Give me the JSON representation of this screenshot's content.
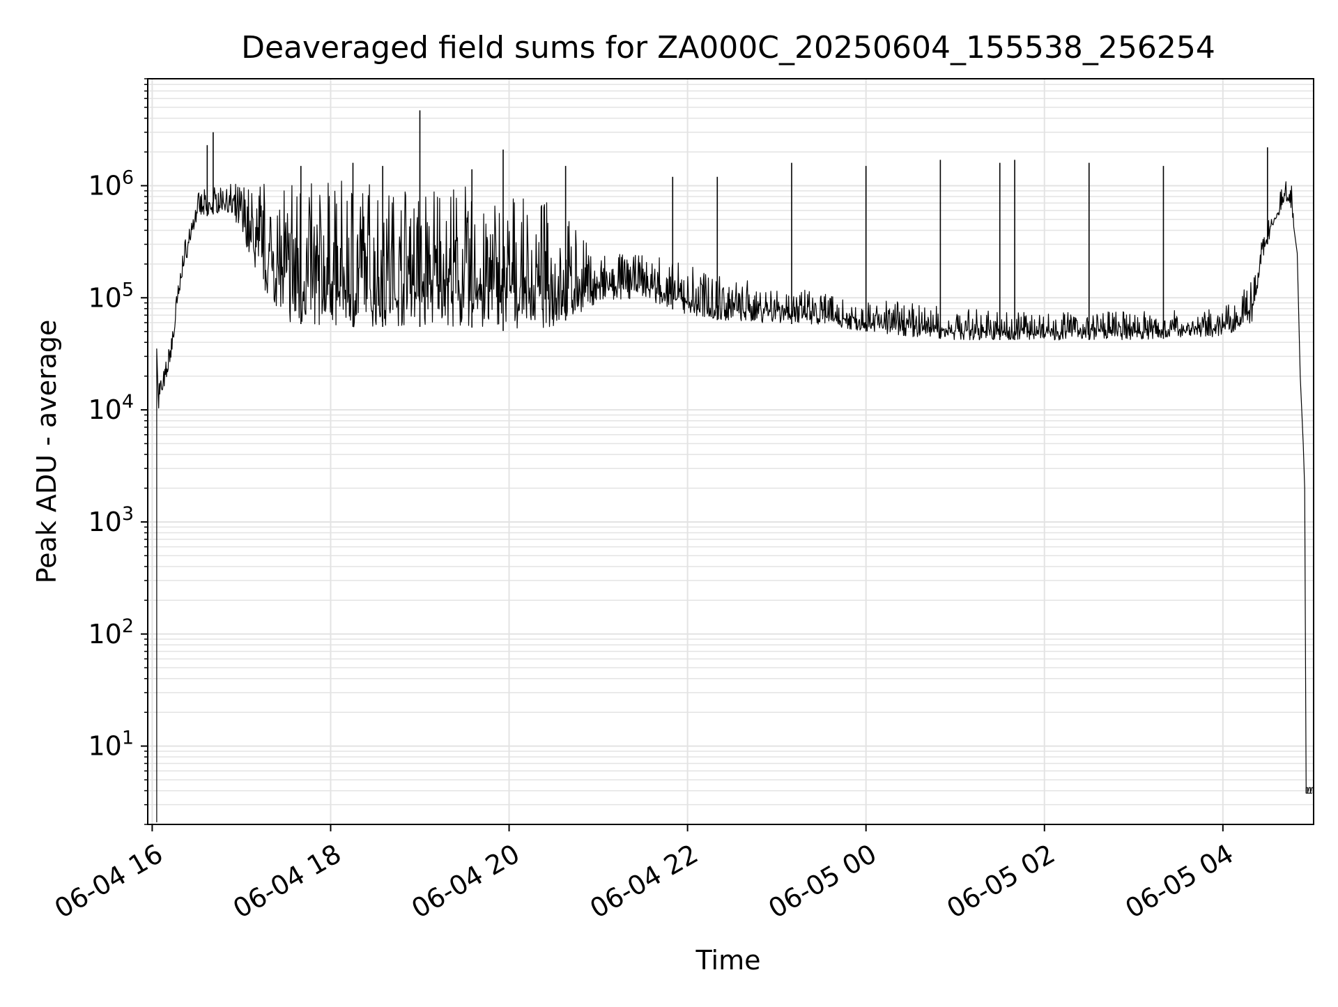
{
  "chart_data": {
    "type": "line",
    "title": "Deaveraged field sums for ZA000C_20250604_155538_256254",
    "xlabel": "Time",
    "ylabel": "Peak ADU - average",
    "yscale": "log",
    "ylim": [
      2,
      9000000
    ],
    "xlim": [
      "2025-06-04 15:57",
      "2025-06-05 05:01"
    ],
    "x_ticks": [
      {
        "value": "2025-06-04 16:00",
        "label": "06-04 16"
      },
      {
        "value": "2025-06-04 18:00",
        "label": "06-04 18"
      },
      {
        "value": "2025-06-04 20:00",
        "label": "06-04 20"
      },
      {
        "value": "2025-06-04 22:00",
        "label": "06-04 22"
      },
      {
        "value": "2025-06-05 00:00",
        "label": "06-05 00"
      },
      {
        "value": "2025-06-05 02:00",
        "label": "06-05 02"
      },
      {
        "value": "2025-06-05 04:00",
        "label": "06-05 04"
      }
    ],
    "y_ticks": [
      {
        "value": 10,
        "base": "10",
        "exp": "1"
      },
      {
        "value": 100,
        "base": "10",
        "exp": "2"
      },
      {
        "value": 1000,
        "base": "10",
        "exp": "3"
      },
      {
        "value": 10000,
        "base": "10",
        "exp": "4"
      },
      {
        "value": 100000,
        "base": "10",
        "exp": "5"
      },
      {
        "value": 1000000,
        "base": "10",
        "exp": "6"
      }
    ],
    "grid": true,
    "line_color": "#000000",
    "grid_color": "#e3e3e3",
    "series": [
      {
        "name": "",
        "envelope": [
          {
            "x": "2025-06-04 16:04",
            "low": 9000,
            "high": 35000
          },
          {
            "x": "2025-06-04 16:08",
            "low": 15000,
            "high": 22000
          },
          {
            "x": "2025-06-04 16:13",
            "low": 30000,
            "high": 50000
          },
          {
            "x": "2025-06-04 16:20",
            "low": 150000,
            "high": 250000
          },
          {
            "x": "2025-06-04 16:30",
            "low": 500000,
            "high": 850000
          },
          {
            "x": "2025-06-04 16:40",
            "low": 550000,
            "high": 1000000
          },
          {
            "x": "2025-06-04 16:50",
            "low": 600000,
            "high": 1100000
          },
          {
            "x": "2025-06-04 17:00",
            "low": 400000,
            "high": 1000000
          },
          {
            "x": "2025-06-04 17:10",
            "low": 150000,
            "high": 1100000
          },
          {
            "x": "2025-06-04 17:30",
            "low": 60000,
            "high": 1200000
          },
          {
            "x": "2025-06-04 18:00",
            "low": 55000,
            "high": 1100000
          },
          {
            "x": "2025-06-04 18:30",
            "low": 55000,
            "high": 1100000
          },
          {
            "x": "2025-06-04 19:00",
            "low": 55000,
            "high": 1000000
          },
          {
            "x": "2025-06-04 19:30",
            "low": 55000,
            "high": 1000000
          },
          {
            "x": "2025-06-04 20:00",
            "low": 50000,
            "high": 800000
          },
          {
            "x": "2025-06-04 20:30",
            "low": 55000,
            "high": 700000
          },
          {
            "x": "2025-06-04 21:00",
            "low": 90000,
            "high": 250000
          },
          {
            "x": "2025-06-04 21:30",
            "low": 100000,
            "high": 250000
          },
          {
            "x": "2025-06-04 22:00",
            "low": 70000,
            "high": 200000
          },
          {
            "x": "2025-06-04 22:30",
            "low": 60000,
            "high": 150000
          },
          {
            "x": "2025-06-04 23:00",
            "low": 60000,
            "high": 130000
          },
          {
            "x": "2025-06-04 23:30",
            "low": 55000,
            "high": 110000
          },
          {
            "x": "2025-06-05 00:00",
            "low": 50000,
            "high": 100000
          },
          {
            "x": "2025-06-05 00:30",
            "low": 45000,
            "high": 90000
          },
          {
            "x": "2025-06-05 01:00",
            "low": 42000,
            "high": 80000
          },
          {
            "x": "2025-06-05 02:00",
            "low": 42000,
            "high": 75000
          },
          {
            "x": "2025-06-05 03:00",
            "low": 42000,
            "high": 75000
          },
          {
            "x": "2025-06-05 04:00",
            "low": 45000,
            "high": 80000
          },
          {
            "x": "2025-06-05 04:20",
            "low": 60000,
            "high": 150000
          },
          {
            "x": "2025-06-05 04:30",
            "low": 300000,
            "high": 600000
          },
          {
            "x": "2025-06-05 04:40",
            "low": 600000,
            "high": 1100000
          },
          {
            "x": "2025-06-05 04:45",
            "low": 700000,
            "high": 1200000
          },
          {
            "x": "2025-06-05 04:48",
            "low": 400000,
            "high": 900000
          }
        ],
        "spikes": [
          {
            "x": "2025-06-04 16:41",
            "y": 3000000
          },
          {
            "x": "2025-06-04 16:37",
            "y": 2300000
          },
          {
            "x": "2025-06-04 17:40",
            "y": 1500000
          },
          {
            "x": "2025-06-04 18:15",
            "y": 1600000
          },
          {
            "x": "2025-06-04 18:35",
            "y": 1500000
          },
          {
            "x": "2025-06-04 19:00",
            "y": 4700000
          },
          {
            "x": "2025-06-04 19:35",
            "y": 1400000
          },
          {
            "x": "2025-06-04 19:56",
            "y": 2100000
          },
          {
            "x": "2025-06-04 20:38",
            "y": 1500000
          },
          {
            "x": "2025-06-04 21:50",
            "y": 1200000
          },
          {
            "x": "2025-06-04 22:20",
            "y": 1200000
          },
          {
            "x": "2025-06-04 23:10",
            "y": 1600000
          },
          {
            "x": "2025-06-05 00:00",
            "y": 1500000
          },
          {
            "x": "2025-06-05 00:50",
            "y": 1700000
          },
          {
            "x": "2025-06-05 01:30",
            "y": 1600000
          },
          {
            "x": "2025-06-05 01:40",
            "y": 1700000
          },
          {
            "x": "2025-06-05 02:30",
            "y": 1600000
          },
          {
            "x": "2025-06-05 03:20",
            "y": 1500000
          },
          {
            "x": "2025-06-05 04:30",
            "y": 2200000
          }
        ],
        "tail": [
          {
            "x": "2025-06-05 04:50",
            "y": 250000
          },
          {
            "x": "2025-06-05 04:52",
            "y": 20000
          },
          {
            "x": "2025-06-05 04:54",
            "y": 5000
          },
          {
            "x": "2025-06-05 04:55",
            "y": 2000
          },
          {
            "x": "2025-06-05 04:56",
            "y": 3.8
          },
          {
            "x": "2025-06-05 05:00",
            "y": 3.8
          }
        ]
      }
    ]
  }
}
